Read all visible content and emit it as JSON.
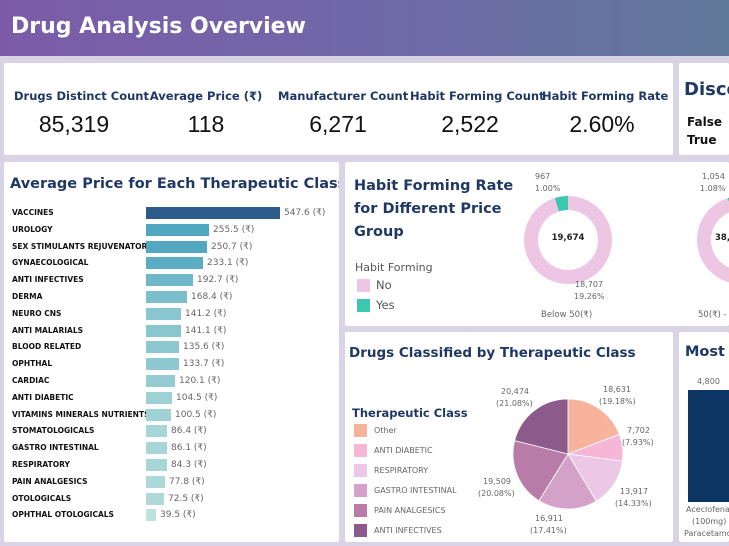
{
  "header": {
    "title": "Drug Analysis Overview"
  },
  "kpis": [
    {
      "label": "Drugs Distinct Count",
      "value": "85,319"
    },
    {
      "label": "Average Price (₹)",
      "value": "118"
    },
    {
      "label": "Manufacturer Count",
      "value": "6,271"
    },
    {
      "label": "Habit Forming Count",
      "value": "2,522"
    },
    {
      "label": "Habit Forming Rate",
      "value": "2.60%"
    }
  ],
  "discontinued_card": {
    "title": "Disco",
    "rows": [
      "False",
      "True"
    ]
  },
  "avg_price_card": {
    "title": "Average Price for Each Therapeutic Class"
  },
  "habit_rate_card": {
    "title_lines": [
      "Habit Forming Rate",
      "for Different Price",
      "Group"
    ],
    "legend_title": "Habit Forming",
    "legend_items": [
      {
        "label": "No",
        "color": "#edc6e3"
      },
      {
        "label": "Yes",
        "color": "#3cc7b0"
      }
    ],
    "donut1": {
      "center": "19,674",
      "yes_label_top": "967",
      "yes_label_bottom": "1.00%",
      "no_label_top": "18,707",
      "no_label_bottom": "19.26%",
      "group_label": "Below 50(₹)"
    },
    "donut2": {
      "center": "38,9",
      "yes_label_top": "1,054",
      "yes_label_bottom": "1.08%",
      "group_label": "50(₹) -"
    }
  },
  "classified_card": {
    "title": "Drugs Classified by Therapeutic Class",
    "legend_title": "Therapeutic Class",
    "slice_labels": [
      {
        "top": "18,631",
        "bottom": "(19.18%)"
      },
      {
        "top": "7,702",
        "bottom": "(7.93%)"
      },
      {
        "top": "13,917",
        "bottom": "(14.33%)"
      },
      {
        "top": "16,911",
        "bottom": "(17.41%)"
      },
      {
        "top": "19,509",
        "bottom": "(20.08%)"
      },
      {
        "top": "20,474",
        "bottom": "(21.08%)"
      }
    ]
  },
  "most_card": {
    "title": "Most C",
    "bar_value": "4,800",
    "bar_label_lines": [
      "Aceclofena",
      "(100mg)",
      "Paracetamo"
    ]
  },
  "chart_data": [
    {
      "type": "bar",
      "title": "Average Price for Each Therapeutic Class",
      "orientation": "horizontal",
      "categories": [
        "VACCINES",
        "UROLOGY",
        "SEX STIMULANTS REJUVENATORS",
        "GYNAECOLOGICAL",
        "ANTI INFECTIVES",
        "DERMA",
        "NEURO CNS",
        "ANTI MALARIALS",
        "BLOOD RELATED",
        "OPHTHAL",
        "CARDIAC",
        "ANTI DIABETIC",
        "VITAMINS MINERALS NUTRIENTS",
        "STOMATOLOGICALS",
        "GASTRO INTESTINAL",
        "RESPIRATORY",
        "PAIN ANALGESICS",
        "OTOLOGICALS",
        "OPHTHAL OTOLOGICALS"
      ],
      "values": [
        547.6,
        255.5,
        250.7,
        233.1,
        192.7,
        168.4,
        141.2,
        141.1,
        135.6,
        133.7,
        120.1,
        104.5,
        100.5,
        86.4,
        86.1,
        84.3,
        77.8,
        72.5,
        39.5
      ],
      "value_labels": [
        "547.6 (₹)",
        "255.5 (₹)",
        "250.7 (₹)",
        "233.1 (₹)",
        "192.7 (₹)",
        "168.4 (₹)",
        "141.2 (₹)",
        "141.1 (₹)",
        "135.6 (₹)",
        "133.7 (₹)",
        "120.1 (₹)",
        "104.5 (₹)",
        "100.5 (₹)",
        "86.4 (₹)",
        "86.1 (₹)",
        "84.3 (₹)",
        "77.8 (₹)",
        "72.5 (₹)",
        "39.5 (₹)"
      ],
      "color_high": "#2e5c8a",
      "color_mid": "#4fa6c0",
      "color_low": "#bfe3dd"
    },
    {
      "type": "pie",
      "title": "Drugs Classified by Therapeutic Class",
      "legend_title": "Therapeutic Class",
      "categories": [
        "Other",
        "ANTI DIABETIC",
        "RESPIRATORY",
        "GASTRO INTESTINAL",
        "PAIN ANALGESICS",
        "ANTI INFECTIVES"
      ],
      "values": [
        18631,
        7702,
        13917,
        16911,
        19509,
        20474
      ],
      "percents": [
        19.18,
        7.93,
        14.33,
        17.41,
        20.08,
        21.08
      ],
      "colors": [
        "#f7b39c",
        "#f6b6d6",
        "#edc8e6",
        "#d4a2c9",
        "#b97ba8",
        "#8d5a8c"
      ]
    },
    {
      "type": "pie",
      "title": "Habit Forming Rate for Different Price Group",
      "series": [
        {
          "name": "Below 50(₹)",
          "values": [
            18707,
            967
          ],
          "categories": [
            "No",
            "Yes"
          ]
        }
      ],
      "colors": [
        "#edc6e3",
        "#3cc7b0"
      ]
    }
  ]
}
